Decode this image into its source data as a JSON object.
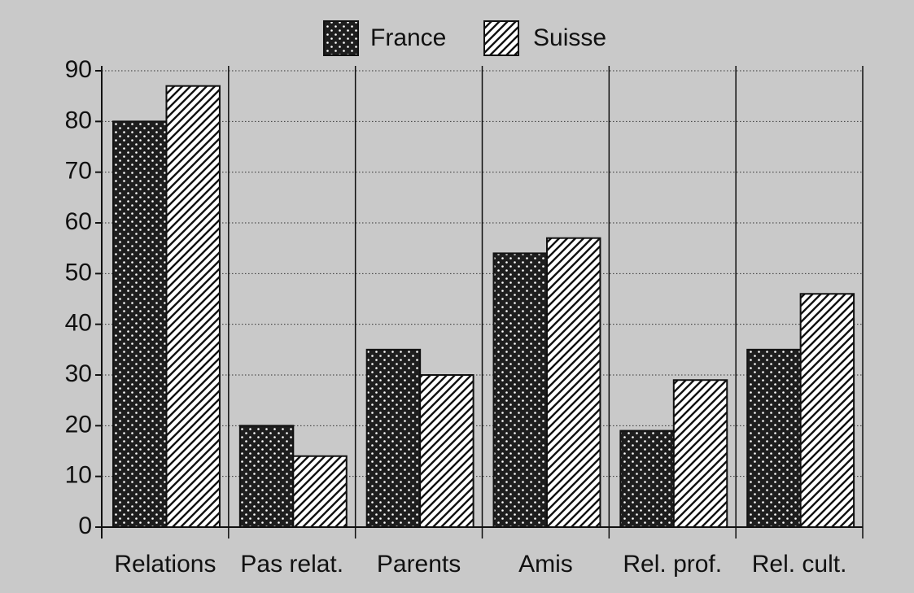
{
  "chart_data": {
    "type": "bar",
    "categories": [
      "Relations",
      "Pas relat.",
      "Parents",
      "Amis",
      "Rel. prof.",
      "Rel. cult."
    ],
    "series": [
      {
        "name": "France",
        "color": "#1e1e1e",
        "pattern": "dots",
        "values": [
          80,
          20,
          35,
          54,
          19,
          35
        ]
      },
      {
        "name": "Suisse",
        "color": "#ffffff",
        "pattern": "hatch",
        "values": [
          87,
          14,
          30,
          57,
          29,
          46
        ]
      }
    ],
    "ylim": [
      0,
      90
    ],
    "yticks": [
      0,
      10,
      20,
      30,
      40,
      50,
      60,
      70,
      80,
      90
    ],
    "grid": true,
    "legend": "top"
  }
}
